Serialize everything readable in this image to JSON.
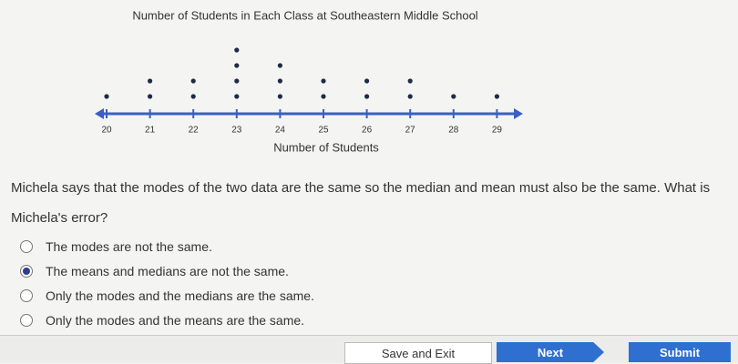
{
  "chart_data": {
    "type": "dot",
    "title": "Number of Students in Each Class at Southeastern Middle School",
    "x_label": "Number of Students",
    "categories": [
      "20",
      "21",
      "22",
      "23",
      "24",
      "25",
      "26",
      "27",
      "28",
      "29"
    ],
    "values": [
      1,
      2,
      2,
      4,
      3,
      2,
      2,
      2,
      1,
      1
    ],
    "color": "#1f2a44",
    "axis_color": "#3b5fc4"
  },
  "question": {
    "text": "Michela says that the modes of the two data are the same so the median and mean must also be the same. What is Michela's error?"
  },
  "options": [
    "The modes are not the same.",
    "The means and medians are not the same.",
    "Only the modes and the medians are the same.",
    "Only the modes and the means are the same."
  ],
  "selected": 1,
  "buttons": {
    "save": "Save and Exit",
    "next": "Next",
    "submit": "Submit"
  }
}
